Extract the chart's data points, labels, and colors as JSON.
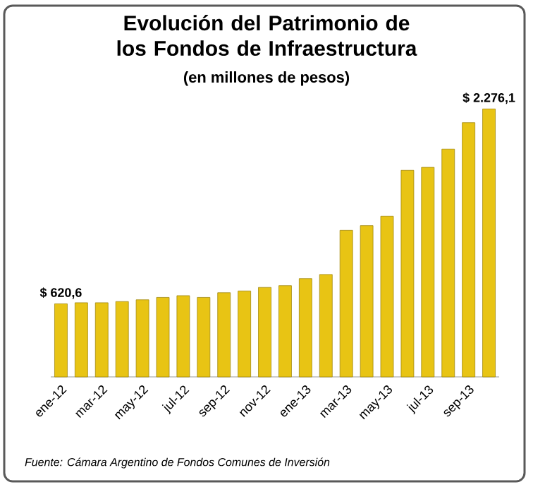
{
  "chart_data": {
    "type": "bar",
    "title": "Evolución del Patrimonio de los Fondos de Infraestructura",
    "subtitle": "(en millones de pesos)",
    "categories": [
      "ene-12",
      null,
      "mar-12",
      null,
      "may-12",
      null,
      "jul-12",
      null,
      "sep-12",
      null,
      "nov-12",
      null,
      "ene-13",
      null,
      "mar-13",
      null,
      "may-13",
      null,
      "jul-13",
      null,
      "sep-13",
      null
    ],
    "values": [
      620.6,
      630,
      630,
      640,
      655,
      675,
      690,
      675,
      715,
      730,
      760,
      775,
      835,
      870,
      1245,
      1285,
      1365,
      1755,
      1780,
      1935,
      2160,
      2276.1
    ],
    "value_labels": [
      "$ 620,6",
      null,
      null,
      null,
      null,
      null,
      null,
      null,
      null,
      null,
      null,
      null,
      null,
      null,
      null,
      null,
      null,
      null,
      null,
      null,
      null,
      "$ 2.276,1"
    ],
    "color": "#e8c414",
    "annotations": [
      "Fuente:  Cámara Argentino de Fondos Comunes de Inversión"
    ]
  }
}
